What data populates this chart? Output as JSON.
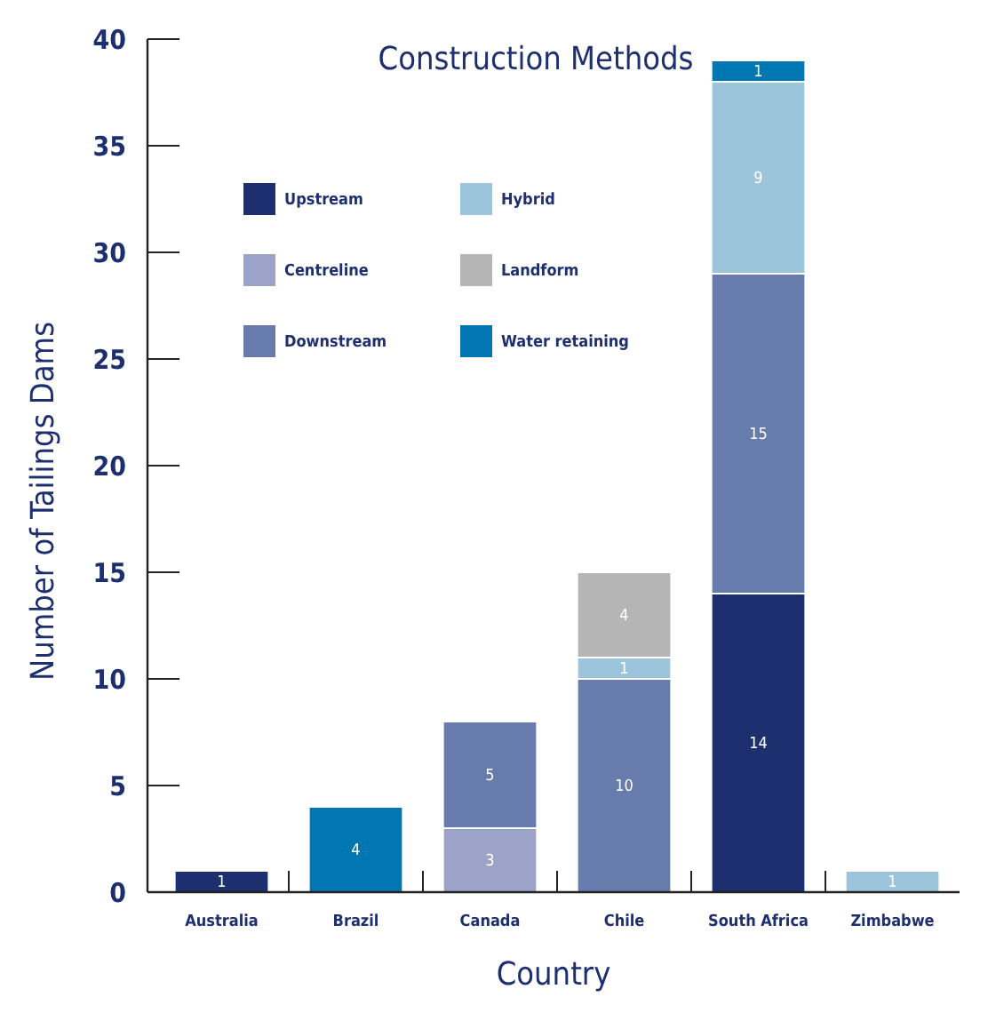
{
  "chart_data": {
    "type": "bar",
    "title": "Construction Methods",
    "xlabel": "Country",
    "ylabel": "Number of Tailings Dams",
    "categories": [
      "Australia",
      "Brazil",
      "Canada",
      "Chile",
      "South Africa",
      "Zimbabwe"
    ],
    "series": [
      {
        "name": "Upstream",
        "color": "#1e2f70",
        "values": [
          1,
          null,
          null,
          null,
          14,
          null
        ]
      },
      {
        "name": "Centreline",
        "color": "#9ca3c8",
        "values": [
          null,
          null,
          3,
          null,
          null,
          null
        ]
      },
      {
        "name": "Downstream",
        "color": "#677cac",
        "values": [
          null,
          null,
          5,
          10,
          15,
          null
        ]
      },
      {
        "name": "Hybrid",
        "color": "#9cc5db",
        "values": [
          null,
          null,
          null,
          1,
          9,
          1
        ]
      },
      {
        "name": "Landform",
        "color": "#b5b5b5",
        "values": [
          null,
          null,
          null,
          4,
          null,
          null
        ]
      },
      {
        "name": "Water retaining",
        "color": "#0076b2",
        "values": [
          null,
          4,
          null,
          null,
          1,
          null
        ]
      }
    ],
    "stacked": true,
    "data_labels": true,
    "ylim": [
      0,
      40
    ],
    "yticks": [
      0,
      5,
      10,
      15,
      20,
      25,
      30,
      35,
      40
    ],
    "grid": false,
    "legend": "top left"
  }
}
